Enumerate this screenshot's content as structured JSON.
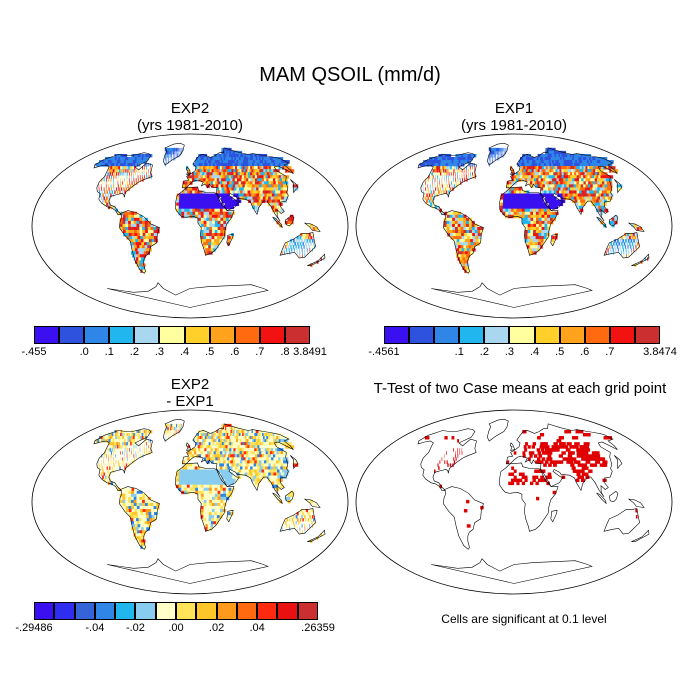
{
  "title": "MAM QSOIL (mm/d)",
  "panels": {
    "top_left": {
      "title_line1": "EXP2",
      "title_line2": "(yrs 1981-2010)",
      "colorbar": {
        "colors": [
          "#3a10f0",
          "#2e52de",
          "#2f86e6",
          "#22b6ef",
          "#a9d7ef",
          "#ffffa0",
          "#ffd02a",
          "#ffa21c",
          "#ff6a10",
          "#f21212",
          "#cc2f2f"
        ],
        "labels": [
          "-.455",
          ".0",
          ".1",
          ".2",
          ".3",
          ".4",
          ".5",
          ".6",
          ".7",
          ".8",
          "3.8491"
        ]
      }
    },
    "top_right": {
      "title_line1": "EXP1",
      "title_line2": "(yrs 1981-2010)",
      "colorbar": {
        "colors": [
          "#3a10f0",
          "#2e52de",
          "#2f86e6",
          "#22b6ef",
          "#a9d7ef",
          "#ffffa0",
          "#ffd02a",
          "#ffa21c",
          "#ff6a10",
          "#f21212",
          "#cc2f2f"
        ],
        "labels": [
          "-.4561",
          "",
          ".1",
          ".2",
          ".3",
          ".4",
          ".5",
          ".6",
          ".7",
          "",
          "3.8474"
        ]
      }
    },
    "bottom_left": {
      "title_line1": "EXP2",
      "title_line2": "- EXP1",
      "colorbar": {
        "colors": [
          "#3a10f0",
          "#2f2ef0",
          "#3563d8",
          "#2f86e6",
          "#22b6ef",
          "#88cdef",
          "#ffffc8",
          "#ffe45a",
          "#ffc62a",
          "#ff9a1c",
          "#ff6a10",
          "#ff2a10",
          "#e81010",
          "#cc2f2f"
        ],
        "labels": [
          "-.29486",
          "",
          "-.04",
          "",
          "-.02",
          "",
          ".00",
          "",
          ".02",
          "",
          ".04",
          "",
          "",
          ".26359"
        ]
      }
    },
    "bottom_right": {
      "title": "T-Test of two Case means at each grid point",
      "note": "Cells are significant at 0.1 level",
      "significance_color": "#e00000"
    }
  }
}
